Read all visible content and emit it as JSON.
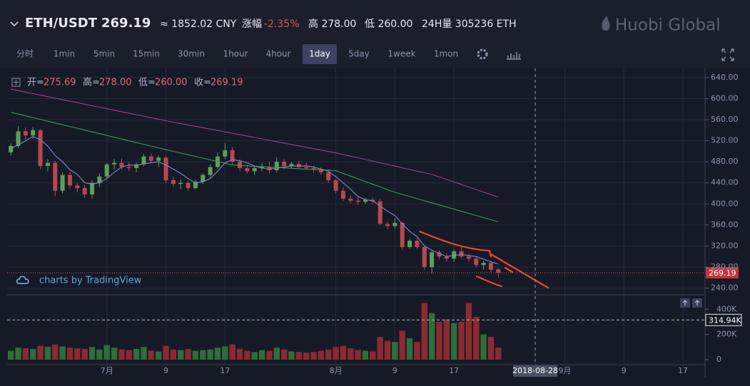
{
  "header": {
    "symbol": "ETH/USDT",
    "price": "269.19",
    "cny": "≈ 1852.02 CNY",
    "change_label": "涨幅",
    "change": "-2.35%",
    "high": "高 278.00",
    "low": "低 260.00",
    "volume24h": "24H量 305236 ETH",
    "brand": "Huobi Global"
  },
  "toolbar": {
    "items": [
      "分时",
      "1min",
      "5min",
      "15min",
      "30min",
      "1hour",
      "4hour",
      "1day",
      "5day",
      "1week",
      "1mon"
    ],
    "active_index": 7
  },
  "ohlc_legend": [
    {
      "label": "开=",
      "value": "275.69"
    },
    {
      "label": "高=",
      "value": "278.00"
    },
    {
      "label": "低=",
      "value": "260.00"
    },
    {
      "label": "收=",
      "value": "269.19"
    }
  ],
  "watermark": "charts by TradingView",
  "chart_data": {
    "type": "candlestick",
    "open": [
      498,
      510,
      538,
      530,
      540,
      472,
      478,
      425,
      455,
      435,
      430,
      418,
      440,
      452,
      475,
      478,
      470,
      468,
      475,
      490,
      482,
      488,
      445,
      438,
      440,
      430,
      442,
      455,
      470,
      490,
      502,
      480,
      468,
      462,
      468,
      470,
      464,
      480,
      472,
      476,
      470,
      468,
      466,
      460,
      445,
      425,
      410,
      406,
      404,
      408,
      405,
      362,
      358,
      364,
      318,
      330,
      318,
      280,
      308,
      300,
      296,
      310,
      300,
      296,
      284,
      288,
      275.69
    ],
    "high": [
      515,
      548,
      545,
      546,
      542,
      485,
      482,
      460,
      460,
      440,
      436,
      445,
      458,
      478,
      485,
      486,
      480,
      478,
      495,
      495,
      492,
      492,
      452,
      446,
      444,
      446,
      458,
      475,
      498,
      515,
      508,
      485,
      474,
      472,
      478,
      480,
      488,
      485,
      480,
      482,
      478,
      472,
      470,
      466,
      448,
      432,
      416,
      412,
      412,
      412,
      410,
      366,
      372,
      366,
      334,
      335,
      322,
      312,
      312,
      306,
      314,
      318,
      305,
      300,
      292,
      292,
      278
    ],
    "low": [
      492,
      506,
      522,
      524,
      465,
      462,
      415,
      420,
      430,
      422,
      412,
      410,
      432,
      448,
      466,
      465,
      462,
      460,
      472,
      478,
      470,
      440,
      432,
      428,
      425,
      428,
      438,
      450,
      466,
      485,
      475,
      462,
      458,
      455,
      462,
      458,
      460,
      466,
      468,
      466,
      465,
      458,
      455,
      440,
      420,
      405,
      402,
      398,
      400,
      400,
      360,
      352,
      354,
      312,
      315,
      315,
      275,
      268,
      295,
      290,
      290,
      296,
      290,
      280,
      275,
      270,
      260
    ],
    "close": [
      510,
      538,
      530,
      540,
      472,
      478,
      425,
      455,
      435,
      430,
      418,
      440,
      452,
      475,
      478,
      470,
      468,
      475,
      490,
      482,
      488,
      445,
      438,
      440,
      430,
      442,
      455,
      470,
      490,
      502,
      480,
      468,
      462,
      468,
      470,
      464,
      480,
      472,
      476,
      470,
      468,
      466,
      460,
      445,
      425,
      410,
      406,
      404,
      408,
      405,
      362,
      358,
      364,
      318,
      330,
      318,
      280,
      308,
      300,
      296,
      310,
      300,
      296,
      284,
      288,
      275,
      269.19
    ],
    "volume": [
      70000,
      95000,
      90000,
      85000,
      110000,
      100000,
      120000,
      105000,
      95000,
      90000,
      85000,
      100000,
      80000,
      115000,
      95000,
      80000,
      75000,
      85000,
      100000,
      70000,
      65000,
      110000,
      80000,
      75000,
      85000,
      70000,
      75000,
      80000,
      95000,
      105000,
      120000,
      85000,
      70000,
      60000,
      75000,
      70000,
      95000,
      80000,
      65000,
      60000,
      55000,
      60000,
      70000,
      80000,
      100000,
      110000,
      90000,
      75000,
      70000,
      65000,
      180000,
      150000,
      140000,
      230000,
      170000,
      140000,
      450000,
      370000,
      300000,
      320000,
      290000,
      300000,
      450000,
      340000,
      200000,
      180000,
      95000
    ],
    "ma_lines": [
      {
        "color": "#a13d8f",
        "values": [
          618,
          615.1,
          612.3,
          609.4,
          606.6,
          603.7,
          600.9,
          598,
          595.1,
          592.3,
          589.4,
          586.6,
          583.7,
          580.9,
          578,
          575.1,
          572.3,
          569.4,
          566.6,
          563.7,
          560.9,
          558,
          555.3,
          552.7,
          550,
          547.4,
          544.7,
          542.1,
          539.4,
          536.8,
          534.1,
          531.5,
          528.8,
          526.2,
          523.5,
          520.8,
          518.2,
          515.5,
          512.9,
          510.2,
          507.6,
          504.9,
          502.3,
          499.6,
          497,
          493.8,
          490.7,
          487.5,
          484.4,
          481.2,
          478.1,
          474.9,
          471.8,
          468.6,
          465.5,
          462.3,
          459.2,
          456,
          451.2,
          446.4,
          441.7,
          436.9,
          432.1,
          427.3,
          422.6,
          417.8,
          413
        ]
      },
      {
        "color": "#3c9a4e",
        "values": [
          574,
          570.6,
          567.2,
          563.9,
          560.5,
          557.1,
          553.7,
          550.3,
          547,
          543.6,
          540.2,
          536.8,
          533.4,
          530,
          526.7,
          523.3,
          519.9,
          516.5,
          513.1,
          509.8,
          506.4,
          503,
          499.8,
          496.6,
          493.3,
          490.1,
          486.9,
          483.7,
          480.4,
          477.2,
          474,
          473.2,
          472.4,
          471.6,
          470.9,
          470.1,
          469.3,
          468.5,
          467.7,
          466.9,
          466.1,
          465.4,
          464.6,
          463.8,
          463,
          457.9,
          452.8,
          447.6,
          442.5,
          437.4,
          432.3,
          427.1,
          422,
          418,
          414,
          410,
          406,
          402,
          398,
          394,
          390,
          386,
          382,
          378,
          374,
          370,
          366
        ]
      },
      {
        "color": "#8088c9",
        "values": [
          505,
          512,
          520,
          528,
          522,
          510,
          492,
          480,
          465,
          456,
          440,
          438,
          440,
          448,
          460,
          470,
          474,
          473,
          476,
          478,
          480,
          474,
          466,
          458,
          448,
          440,
          442,
          448,
          462,
          478,
          484,
          482,
          478,
          472,
          468,
          466,
          468,
          470,
          472,
          472,
          472,
          470,
          466,
          462,
          452,
          440,
          428,
          414,
          408,
          406,
          396,
          386,
          378,
          362,
          348,
          338,
          320,
          312,
          306,
          300,
          302,
          304,
          302,
          300,
          295,
          290,
          286
        ]
      }
    ],
    "up_color": "#5c9f5a",
    "down_color": "#b8474f",
    "vol_up_color": "#2f6e3b",
    "vol_down_color": "#8c2a30",
    "ylim": [
      230,
      652
    ],
    "yticks": [
      {
        "value": 240,
        "label": "240.00"
      },
      {
        "value": 280,
        "label": "280.00"
      },
      {
        "value": 320,
        "label": "320.00"
      },
      {
        "value": 360,
        "label": "360.00"
      },
      {
        "value": 400,
        "label": "400.00"
      },
      {
        "value": 440,
        "label": "440.00"
      },
      {
        "value": 480,
        "label": "480.00"
      },
      {
        "value": 520,
        "label": "520.00"
      },
      {
        "value": 560,
        "label": "560.00"
      },
      {
        "value": 600,
        "label": "600.00"
      },
      {
        "value": 640,
        "label": "640.00"
      }
    ],
    "vlim": [
      -40000,
      492000
    ],
    "vticks": [
      0,
      {
        "value": 200000,
        "label": "200K"
      },
      {
        "value": 400000,
        "label": "400K"
      }
    ],
    "volume_marker": {
      "value": 314940,
      "label": "314.94K"
    },
    "xlim": [
      -0.5,
      93.7
    ],
    "xticks": [
      {
        "value": 13,
        "label": "7月"
      },
      {
        "value": 21,
        "label": "9"
      },
      {
        "value": 29,
        "label": "17"
      },
      {
        "value": 44,
        "label": "8月"
      },
      {
        "value": 52,
        "label": "9"
      },
      {
        "value": 60,
        "label": "17"
      },
      {
        "value": 75,
        "label": "9月"
      },
      {
        "value": 83,
        "label": "9"
      },
      {
        "value": 91,
        "label": "17"
      }
    ],
    "crosshair": {
      "value": 71,
      "label": "2018-08-28"
    }
  }
}
